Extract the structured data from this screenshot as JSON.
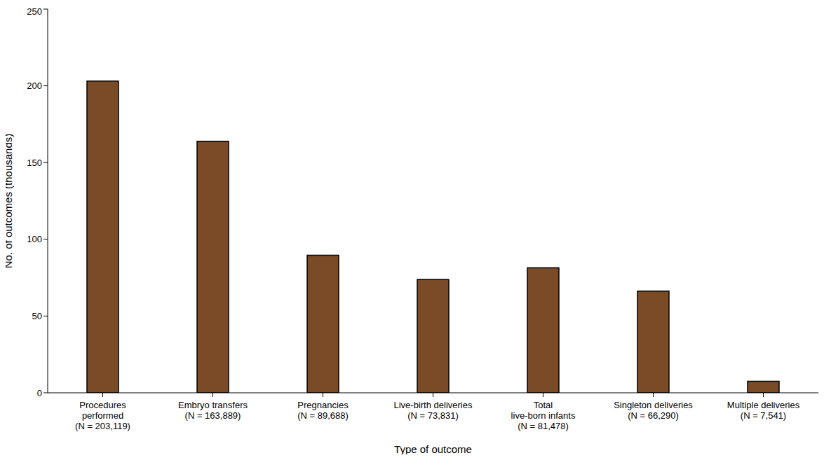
{
  "chart_data": {
    "type": "bar",
    "x_label": "Type of outcome",
    "y_label": "No. of outcomes (thousands)",
    "categories": [
      "Procedures\nperformed\n(N = 203,119)",
      "Embryo transfers\n(N = 163,889)",
      "Pregnancies\n(N = 89,688)",
      "Live-birth deliveries\n(N = 73,831)",
      "Total\nlive-born infants\n(N = 81,478)",
      "Singleton deliveries\n(N = 66,290)",
      "Multiple deliveries\n(N = 7,541)"
    ],
    "values": [
      203.119,
      163.889,
      89.688,
      73.831,
      81.478,
      66.29,
      7.541
    ],
    "color": "#7b4a26",
    "ylim": [
      0,
      250
    ],
    "yticks": [
      0,
      50,
      100,
      150,
      200,
      250
    ],
    "grid": false
  }
}
